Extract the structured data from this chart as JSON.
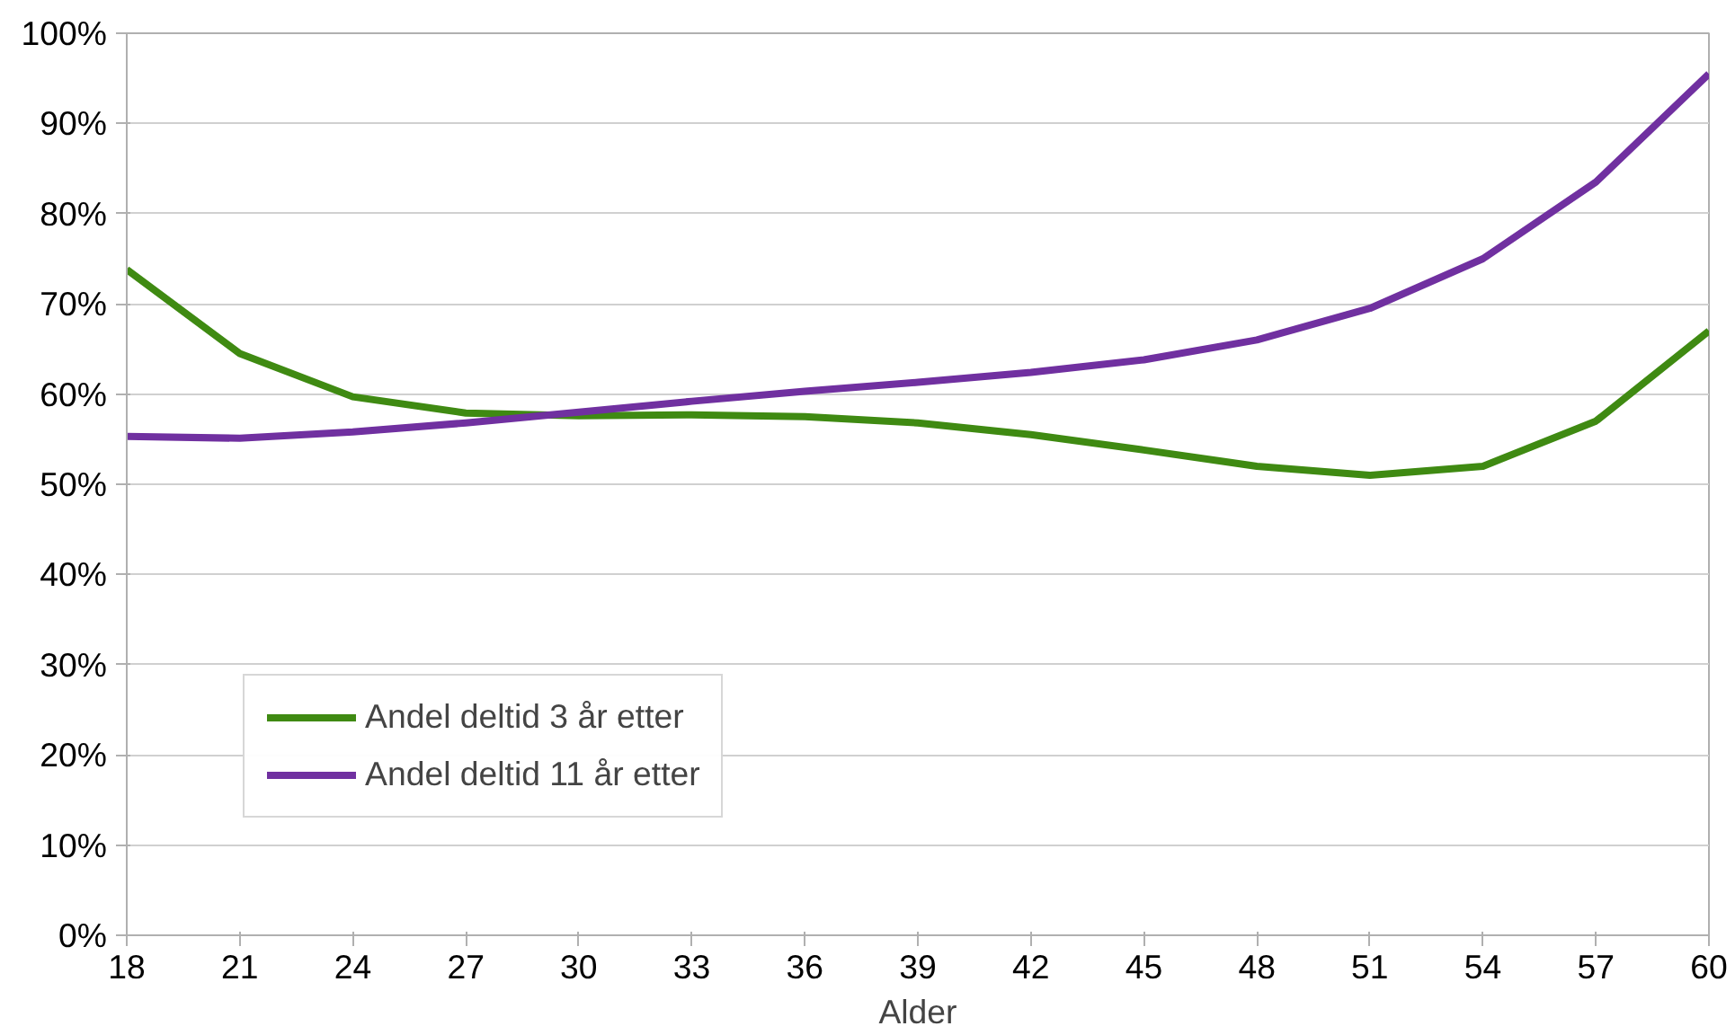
{
  "chart_data": {
    "type": "line",
    "xlabel": "Alder",
    "x": [
      18,
      21,
      24,
      27,
      30,
      33,
      36,
      39,
      42,
      45,
      48,
      51,
      54,
      57,
      60
    ],
    "series": [
      {
        "name": "Andel deltid 3 år etter",
        "color": "#3f8a12",
        "values": [
          73.8,
          64.5,
          59.7,
          57.9,
          57.6,
          57.7,
          57.5,
          56.8,
          55.5,
          53.8,
          52.0,
          51.0,
          52.0,
          57.0,
          67.0
        ]
      },
      {
        "name": "Andel deltid 11 år etter",
        "color": "#7030a0",
        "values": [
          55.3,
          55.1,
          55.8,
          56.8,
          58.0,
          59.2,
          60.3,
          61.3,
          62.4,
          63.8,
          66.0,
          69.5,
          75.0,
          83.5,
          95.5
        ]
      }
    ],
    "xlim": [
      18,
      60
    ],
    "xticks": [
      18,
      21,
      24,
      27,
      30,
      33,
      36,
      39,
      42,
      45,
      48,
      51,
      54,
      57,
      60
    ],
    "ylim": [
      0,
      100
    ],
    "yticks": [
      {
        "value": 0,
        "label": "0%"
      },
      {
        "value": 10,
        "label": "10%"
      },
      {
        "value": 20,
        "label": "20%"
      },
      {
        "value": 30,
        "label": "30%"
      },
      {
        "value": 40,
        "label": "40%"
      },
      {
        "value": 50,
        "label": "50%"
      },
      {
        "value": 60,
        "label": "60%"
      },
      {
        "value": 70,
        "label": "70%"
      },
      {
        "value": 80,
        "label": "80%"
      },
      {
        "value": 90,
        "label": "90%"
      },
      {
        "value": 100,
        "label": "100%"
      }
    ],
    "grid": "y",
    "legend": "bottom left",
    "marker": "none",
    "line_style": "solid"
  }
}
